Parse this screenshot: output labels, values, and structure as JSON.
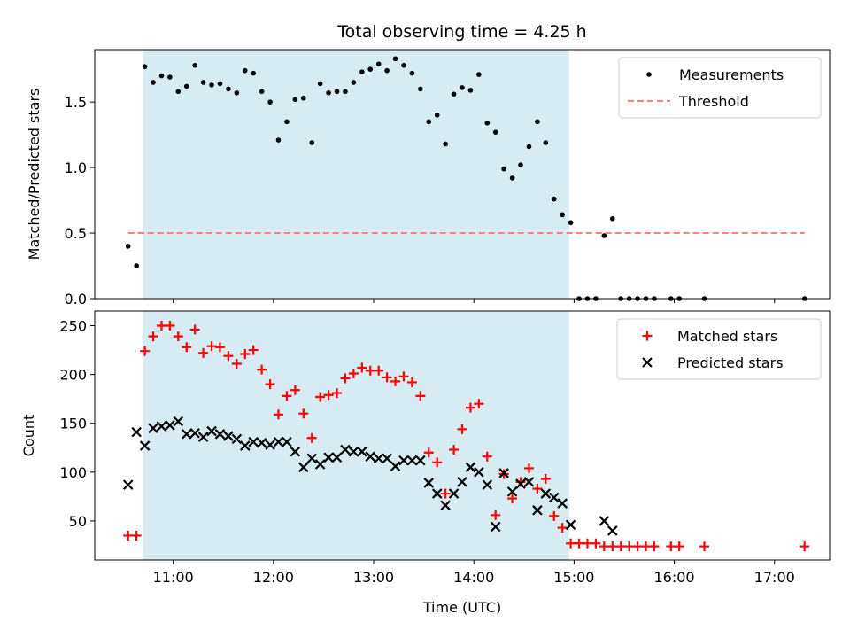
{
  "chart_data": [
    {
      "type": "scatter",
      "title": "Total observing time = 4.25 h",
      "xlabel": "",
      "ylabel": "Matched/Predicted stars",
      "xlim": [
        "10:13",
        "17:33"
      ],
      "ylim": [
        0,
        1.9
      ],
      "y_ticks": [
        "0.0",
        "0.5",
        "1.0",
        "1.5"
      ],
      "x_ticks": [
        "11:00",
        "12:00",
        "13:00",
        "14:00",
        "15:00",
        "16:00",
        "17:00"
      ],
      "x_tick_labels_shown": false,
      "shaded_span": {
        "x_start": "10:42",
        "x_end": "14:57",
        "color": "#add8e6"
      },
      "legend": {
        "location": "top-right",
        "entries": [
          "Measurements",
          "Threshold"
        ]
      },
      "series": [
        {
          "name": "Measurements",
          "marker": "dot",
          "color": "#000000",
          "points": [
            [
              "10:33",
              0.4
            ],
            [
              "10:38",
              0.25
            ],
            [
              "10:43",
              1.77
            ],
            [
              "10:48",
              1.65
            ],
            [
              "10:53",
              1.7
            ],
            [
              "10:58",
              1.69
            ],
            [
              "11:03",
              1.58
            ],
            [
              "11:08",
              1.62
            ],
            [
              "11:13",
              1.78
            ],
            [
              "11:18",
              1.65
            ],
            [
              "11:23",
              1.63
            ],
            [
              "11:28",
              1.64
            ],
            [
              "11:33",
              1.6
            ],
            [
              "11:38",
              1.57
            ],
            [
              "11:43",
              1.74
            ],
            [
              "11:48",
              1.72
            ],
            [
              "11:53",
              1.58
            ],
            [
              "11:58",
              1.5
            ],
            [
              "12:03",
              1.21
            ],
            [
              "12:08",
              1.35
            ],
            [
              "12:13",
              1.52
            ],
            [
              "12:18",
              1.53
            ],
            [
              "12:23",
              1.19
            ],
            [
              "12:28",
              1.64
            ],
            [
              "12:33",
              1.57
            ],
            [
              "12:38",
              1.58
            ],
            [
              "12:43",
              1.58
            ],
            [
              "12:48",
              1.65
            ],
            [
              "12:53",
              1.73
            ],
            [
              "12:58",
              1.75
            ],
            [
              "13:03",
              1.79
            ],
            [
              "13:08",
              1.74
            ],
            [
              "13:13",
              1.83
            ],
            [
              "13:18",
              1.78
            ],
            [
              "13:23",
              1.72
            ],
            [
              "13:28",
              1.6
            ],
            [
              "13:33",
              1.35
            ],
            [
              "13:38",
              1.4
            ],
            [
              "13:43",
              1.18
            ],
            [
              "13:48",
              1.56
            ],
            [
              "13:53",
              1.61
            ],
            [
              "13:58",
              1.59
            ],
            [
              "14:03",
              1.71
            ],
            [
              "14:08",
              1.34
            ],
            [
              "14:13",
              1.27
            ],
            [
              "14:18",
              0.99
            ],
            [
              "14:23",
              0.92
            ],
            [
              "14:28",
              1.02
            ],
            [
              "14:33",
              1.16
            ],
            [
              "14:38",
              1.35
            ],
            [
              "14:43",
              1.19
            ],
            [
              "14:48",
              0.76
            ],
            [
              "14:53",
              0.64
            ],
            [
              "14:58",
              0.58
            ],
            [
              "15:03",
              0.0
            ],
            [
              "15:08",
              0.0
            ],
            [
              "15:13",
              0.0
            ],
            [
              "15:18",
              0.48
            ],
            [
              "15:23",
              0.61
            ],
            [
              "15:28",
              0.0
            ],
            [
              "15:33",
              0.0
            ],
            [
              "15:38",
              0.0
            ],
            [
              "15:43",
              0.0
            ],
            [
              "15:48",
              0.0
            ],
            [
              "15:58",
              0.0
            ],
            [
              "16:03",
              0.0
            ],
            [
              "16:18",
              0.0
            ],
            [
              "17:18",
              0.0
            ]
          ]
        },
        {
          "name": "Threshold",
          "type": "line",
          "style": "dashed",
          "color": "#ff8080",
          "points": [
            [
              "10:33",
              0.5
            ],
            [
              "17:18",
              0.5
            ]
          ]
        }
      ]
    },
    {
      "type": "scatter",
      "title": "",
      "xlabel": "Time (UTC)",
      "ylabel": "Count",
      "xlim": [
        "10:13",
        "17:33"
      ],
      "ylim": [
        10,
        265
      ],
      "y_ticks": [
        "50",
        "100",
        "150",
        "200",
        "250"
      ],
      "x_ticks": [
        "11:00",
        "12:00",
        "13:00",
        "14:00",
        "15:00",
        "16:00",
        "17:00"
      ],
      "shaded_span": {
        "x_start": "10:42",
        "x_end": "14:57",
        "color": "#add8e6"
      },
      "legend": {
        "location": "top-right",
        "entries": [
          "Matched stars",
          "Predicted stars"
        ]
      },
      "series": [
        {
          "name": "Matched stars",
          "marker": "plus",
          "color": "#ff0000",
          "points": [
            [
              "10:33",
              35
            ],
            [
              "10:38",
              35
            ],
            [
              "10:43",
              224
            ],
            [
              "10:48",
              239
            ],
            [
              "10:53",
              250
            ],
            [
              "10:58",
              250
            ],
            [
              "11:03",
              239
            ],
            [
              "11:08",
              228
            ],
            [
              "11:13",
              246
            ],
            [
              "11:18",
              222
            ],
            [
              "11:23",
              229
            ],
            [
              "11:28",
              228
            ],
            [
              "11:33",
              219
            ],
            [
              "11:38",
              211
            ],
            [
              "11:43",
              221
            ],
            [
              "11:48",
              225
            ],
            [
              "11:53",
              205
            ],
            [
              "11:58",
              190
            ],
            [
              "12:03",
              159
            ],
            [
              "12:08",
              178
            ],
            [
              "12:13",
              184
            ],
            [
              "12:18",
              160
            ],
            [
              "12:23",
              135
            ],
            [
              "12:28",
              177
            ],
            [
              "12:33",
              179
            ],
            [
              "12:38",
              181
            ],
            [
              "12:43",
              196
            ],
            [
              "12:48",
              201
            ],
            [
              "12:53",
              207
            ],
            [
              "12:58",
              204
            ],
            [
              "13:03",
              204
            ],
            [
              "13:08",
              197
            ],
            [
              "13:13",
              193
            ],
            [
              "13:18",
              198
            ],
            [
              "13:23",
              192
            ],
            [
              "13:28",
              178
            ],
            [
              "13:33",
              120
            ],
            [
              "13:38",
              110
            ],
            [
              "13:43",
              78
            ],
            [
              "13:48",
              123
            ],
            [
              "13:53",
              144
            ],
            [
              "13:58",
              166
            ],
            [
              "14:03",
              170
            ],
            [
              "14:08",
              116
            ],
            [
              "14:13",
              56
            ],
            [
              "14:18",
              98
            ],
            [
              "14:23",
              73
            ],
            [
              "14:28",
              90
            ],
            [
              "14:33",
              104
            ],
            [
              "14:38",
              83
            ],
            [
              "14:43",
              93
            ],
            [
              "14:48",
              55
            ],
            [
              "14:53",
              43
            ],
            [
              "14:58",
              27
            ],
            [
              "15:03",
              27
            ],
            [
              "15:08",
              27
            ],
            [
              "15:13",
              27
            ],
            [
              "15:18",
              24
            ],
            [
              "15:23",
              24
            ],
            [
              "15:28",
              24
            ],
            [
              "15:33",
              24
            ],
            [
              "15:38",
              24
            ],
            [
              "15:43",
              24
            ],
            [
              "15:48",
              24
            ],
            [
              "15:58",
              24
            ],
            [
              "16:03",
              24
            ],
            [
              "16:18",
              24
            ],
            [
              "17:18",
              24
            ]
          ]
        },
        {
          "name": "Predicted stars",
          "marker": "x",
          "color": "#000000",
          "points": [
            [
              "10:33",
              87
            ],
            [
              "10:38",
              141
            ],
            [
              "10:43",
              127
            ],
            [
              "10:48",
              145
            ],
            [
              "10:53",
              147
            ],
            [
              "10:58",
              148
            ],
            [
              "11:03",
              152
            ],
            [
              "11:08",
              139
            ],
            [
              "11:13",
              140
            ],
            [
              "11:18",
              136
            ],
            [
              "11:23",
              142
            ],
            [
              "11:28",
              139
            ],
            [
              "11:33",
              137
            ],
            [
              "11:38",
              134
            ],
            [
              "11:43",
              127
            ],
            [
              "11:48",
              131
            ],
            [
              "11:53",
              130
            ],
            [
              "11:58",
              128
            ],
            [
              "12:03",
              131
            ],
            [
              "12:08",
              131
            ],
            [
              "12:13",
              121
            ],
            [
              "12:18",
              105
            ],
            [
              "12:23",
              114
            ],
            [
              "12:28",
              108
            ],
            [
              "12:33",
              115
            ],
            [
              "12:38",
              115
            ],
            [
              "12:43",
              123
            ],
            [
              "12:48",
              121
            ],
            [
              "12:53",
              121
            ],
            [
              "12:58",
              116
            ],
            [
              "13:03",
              114
            ],
            [
              "13:08",
              114
            ],
            [
              "13:13",
              106
            ],
            [
              "13:18",
              112
            ],
            [
              "13:23",
              112
            ],
            [
              "13:28",
              112
            ],
            [
              "13:33",
              89
            ],
            [
              "13:38",
              78
            ],
            [
              "13:43",
              66
            ],
            [
              "13:48",
              78
            ],
            [
              "13:53",
              90
            ],
            [
              "13:58",
              105
            ],
            [
              "14:03",
              100
            ],
            [
              "14:08",
              87
            ],
            [
              "14:13",
              44
            ],
            [
              "14:18",
              99
            ],
            [
              "14:23",
              80
            ],
            [
              "14:28",
              88
            ],
            [
              "14:33",
              90
            ],
            [
              "14:38",
              61
            ],
            [
              "14:43",
              78
            ],
            [
              "14:48",
              74
            ],
            [
              "14:53",
              68
            ],
            [
              "14:58",
              46
            ],
            [
              "15:18",
              50
            ],
            [
              "15:23",
              40
            ]
          ]
        }
      ]
    }
  ]
}
